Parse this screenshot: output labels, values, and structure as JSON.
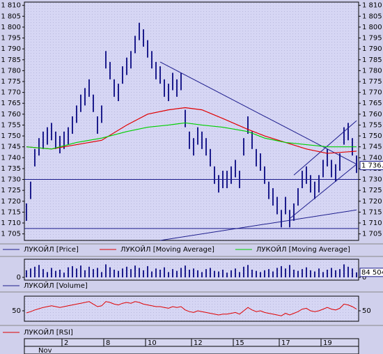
{
  "chart_data": [
    {
      "type": "ohlc",
      "xlim": [
        -0.5,
        79.5
      ],
      "ylim": [
        1702,
        1811.5
      ],
      "yticks": [
        {
          "value": 1705,
          "label": "1 705"
        },
        {
          "value": 1710,
          "label": "1 710"
        },
        {
          "value": 1715,
          "label": "1 715"
        },
        {
          "value": 1720,
          "label": "1 720"
        },
        {
          "value": 1725,
          "label": "1 725"
        },
        {
          "value": 1730,
          "label": "1 730"
        },
        {
          "value": 1735,
          "label": "1 735"
        },
        {
          "value": 1740,
          "label": "1 740"
        },
        {
          "value": 1745,
          "label": "1 745"
        },
        {
          "value": 1750,
          "label": "1 750"
        },
        {
          "value": 1755,
          "label": "1 755"
        },
        {
          "value": 1760,
          "label": "1 760"
        },
        {
          "value": 1765,
          "label": "1 765"
        },
        {
          "value": 1770,
          "label": "1 770"
        },
        {
          "value": 1775,
          "label": "1 775"
        },
        {
          "value": 1780,
          "label": "1 780"
        },
        {
          "value": 1785,
          "label": "1 785"
        },
        {
          "value": 1790,
          "label": "1 790"
        },
        {
          "value": 1795,
          "label": "1 795"
        },
        {
          "value": 1800,
          "label": "1 800"
        },
        {
          "value": 1805,
          "label": "1 805"
        },
        {
          "value": 1810,
          "label": "1 810"
        }
      ],
      "series": [
        {
          "name": "ЛУКОЙЛ [Price]",
          "color": "#1c1c8c",
          "high": [
            1719,
            1729,
            1744,
            1749,
            1752,
            1754,
            1756,
            1752,
            1750,
            1752,
            1754,
            1759,
            1764,
            1769,
            1772,
            1776,
            1769,
            1759,
            1764,
            1789,
            1784,
            1776,
            1774,
            1782,
            1786,
            1789,
            1796,
            1802,
            1799,
            1794,
            1789,
            1784,
            1782,
            1776,
            1774,
            1779,
            1776,
            1779,
            1762,
            1752,
            1749,
            1754,
            1752,
            1749,
            1744,
            1736,
            1732,
            1734,
            1734,
            1736,
            1739,
            1734,
            1749,
            1759,
            1752,
            1744,
            1742,
            1736,
            1729,
            1726,
            1722,
            1716,
            1722,
            1716,
            1719,
            1726,
            1734,
            1736,
            1732,
            1729,
            1732,
            1739,
            1744,
            1739,
            1737,
            1742,
            1754,
            1756,
            1749,
            1741
          ],
          "low": [
            1711,
            1721,
            1736,
            1741,
            1744,
            1746,
            1748,
            1744,
            1742,
            1744,
            1746,
            1751,
            1756,
            1761,
            1764,
            1768,
            1761,
            1751,
            1756,
            1781,
            1776,
            1768,
            1766,
            1774,
            1778,
            1781,
            1788,
            1794,
            1791,
            1786,
            1781,
            1776,
            1774,
            1768,
            1766,
            1771,
            1768,
            1771,
            1754,
            1744,
            1741,
            1746,
            1744,
            1741,
            1736,
            1728,
            1724,
            1726,
            1726,
            1728,
            1731,
            1726,
            1741,
            1751,
            1744,
            1736,
            1734,
            1728,
            1721,
            1718,
            1714,
            1708,
            1714,
            1708,
            1711,
            1718,
            1726,
            1728,
            1724,
            1721,
            1724,
            1731,
            1736,
            1731,
            1729,
            1734,
            1746,
            1748,
            1741,
            1733
          ]
        },
        {
          "name": "ЛУКОЙЛ [Moving Average]",
          "color": "#e00000",
          "x": [
            0,
            6,
            12,
            18,
            24,
            29,
            34,
            38,
            42,
            47,
            53,
            57,
            62,
            67,
            72,
            79
          ],
          "values": [
            1745,
            1744,
            1746,
            1748,
            1755,
            1760,
            1762,
            1763,
            1762,
            1758,
            1753,
            1750,
            1747,
            1744,
            1742,
            1743
          ]
        },
        {
          "name": "ЛУКОЙЛ [Moving Average]",
          "color": "#00d000",
          "x": [
            0,
            6,
            12,
            18,
            24,
            29,
            34,
            38,
            42,
            47,
            53,
            57,
            62,
            67,
            72,
            79
          ],
          "values": [
            1745,
            1744,
            1747,
            1749,
            1752,
            1754,
            1755,
            1756,
            1755,
            1754,
            1752,
            1749,
            1747,
            1746,
            1745,
            1745
          ]
        }
      ],
      "hlines": [
        1730,
        1707.5
      ],
      "trendlines": [
        {
          "x": [
            32,
            79
          ],
          "y": [
            1784,
            1737
          ]
        },
        {
          "x": [
            32,
            79
          ],
          "y": [
            1702,
            1716
          ]
        },
        {
          "x": [
            63,
            79
          ],
          "y": [
            1712,
            1737
          ]
        },
        {
          "x": [
            64,
            79
          ],
          "y": [
            1732,
            1757
          ]
        }
      ],
      "last_price": {
        "value": 1736.4,
        "label": "1 736.4"
      }
    },
    {
      "type": "bar",
      "xlim": [
        -0.5,
        79.5
      ],
      "ylim": [
        0,
        260000
      ],
      "yticks": [
        0
      ],
      "series": [
        {
          "name": "ЛУКОЙЛ [Volume]",
          "color": "#1c1c8c",
          "values": [
            120000,
            150000,
            180000,
            210000,
            140000,
            90000,
            160000,
            110000,
            130000,
            80000,
            170000,
            190000,
            150000,
            200000,
            120000,
            180000,
            140000,
            160000,
            90000,
            220000,
            170000,
            130000,
            110000,
            150000,
            180000,
            140000,
            200000,
            160000,
            120000,
            190000,
            100000,
            150000,
            130000,
            170000,
            90000,
            140000,
            110000,
            160000,
            200000,
            130000,
            150000,
            120000,
            90000,
            140000,
            160000,
            110000,
            100000,
            130000,
            80000,
            120000,
            150000,
            90000,
            180000,
            210000,
            130000,
            110000,
            90000,
            120000,
            140000,
            100000,
            160000,
            190000,
            150000,
            210000,
            130000,
            110000,
            140000,
            170000,
            120000,
            100000,
            150000,
            90000,
            130000,
            160000,
            120000,
            140000,
            220000,
            180000,
            150000,
            84504
          ]
        }
      ],
      "last_value": {
        "value": 84504,
        "label": "84 504"
      }
    },
    {
      "type": "line",
      "xlim": [
        -0.5,
        79.5
      ],
      "ylim": [
        25,
        85
      ],
      "yticks": [
        50
      ],
      "series": [
        {
          "name": "ЛУКОЙЛ [RSI]",
          "color": "#e00000",
          "values": [
            45,
            48,
            52,
            55,
            58,
            60,
            62,
            60,
            58,
            60,
            62,
            64,
            66,
            68,
            70,
            72,
            66,
            60,
            62,
            72,
            70,
            66,
            64,
            68,
            70,
            68,
            72,
            70,
            66,
            64,
            62,
            60,
            60,
            58,
            56,
            60,
            58,
            60,
            52,
            48,
            46,
            50,
            48,
            46,
            44,
            42,
            40,
            42,
            42,
            44,
            46,
            42,
            50,
            58,
            52,
            48,
            50,
            46,
            44,
            42,
            40,
            38,
            44,
            40,
            44,
            48,
            54,
            56,
            50,
            48,
            50,
            54,
            58,
            54,
            52,
            56,
            66,
            64,
            60,
            54
          ]
        }
      ],
      "xticks": [
        {
          "value": 9,
          "label": "2"
        },
        {
          "value": 19,
          "label": "8"
        },
        {
          "value": 29,
          "label": "10"
        },
        {
          "value": 40,
          "label": "12"
        },
        {
          "value": 50,
          "label": "15"
        },
        {
          "value": 61,
          "label": "17"
        },
        {
          "value": 71,
          "label": "19"
        }
      ],
      "month": "Nov"
    }
  ]
}
